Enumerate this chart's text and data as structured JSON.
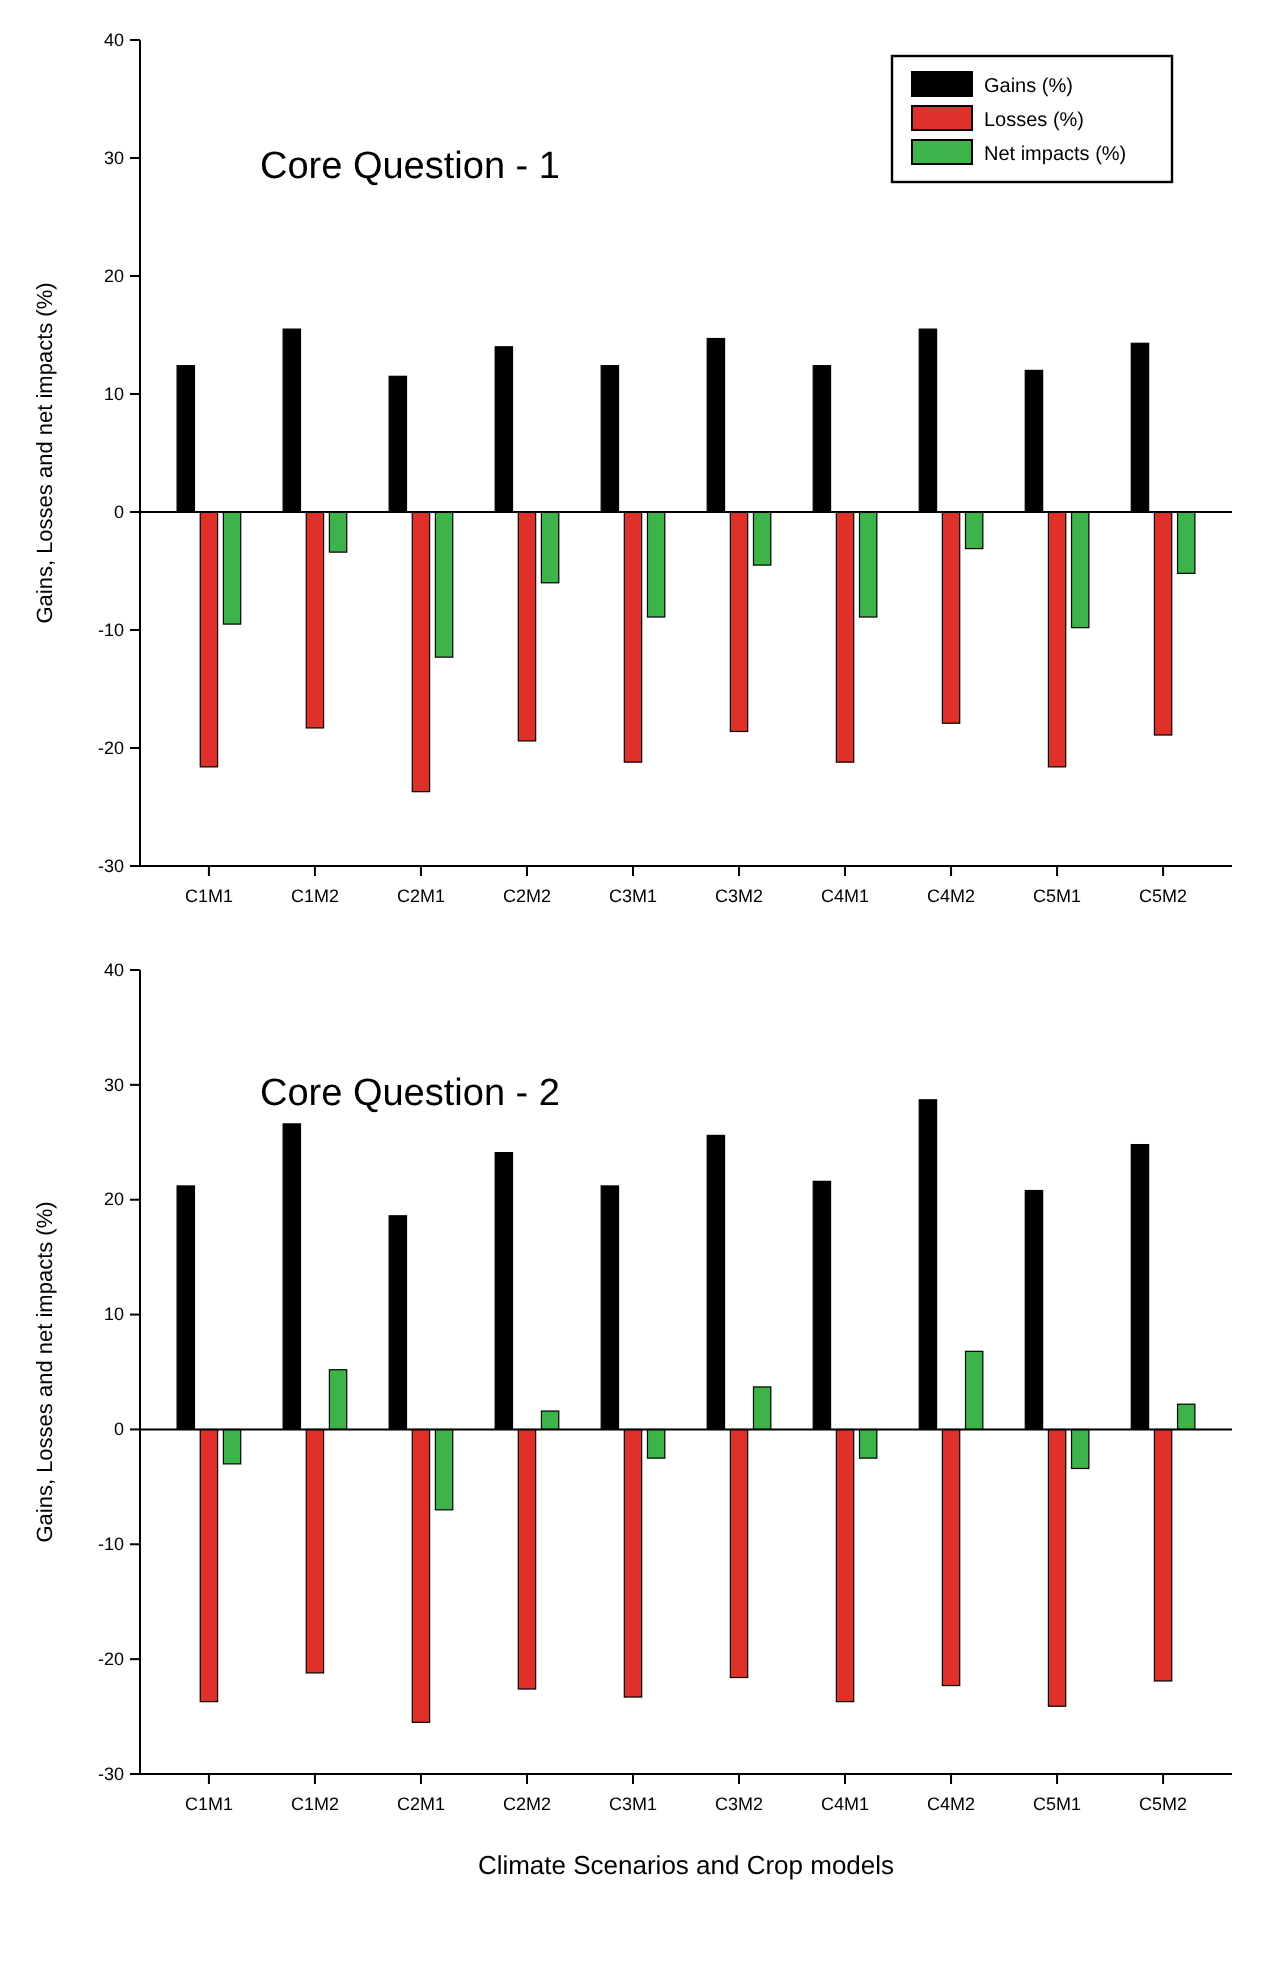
{
  "chart_data": [
    {
      "type": "bar",
      "annotations": [
        "Core Question - 1"
      ],
      "ylabel": "Gains, Losses and net impacts (%)",
      "categories": [
        "C1M1",
        "C1M2",
        "C2M1",
        "C2M2",
        "C3M1",
        "C3M2",
        "C4M1",
        "C4M2",
        "C5M1",
        "C5M2"
      ],
      "series": [
        {
          "name": "Gains (%)",
          "color": "#000000",
          "values": [
            12.4,
            15.5,
            11.5,
            14.0,
            12.4,
            14.7,
            12.4,
            15.5,
            12.0,
            14.3
          ]
        },
        {
          "name": "Losses (%)",
          "color": "#e0302a",
          "values": [
            -21.6,
            -18.3,
            -23.7,
            -19.4,
            -21.2,
            -18.6,
            -21.2,
            -17.9,
            -21.6,
            -18.9
          ]
        },
        {
          "name": "Net impacts (%)",
          "color": "#3cb44a",
          "values": [
            -9.5,
            -3.4,
            -12.3,
            -6.0,
            -8.9,
            -4.5,
            -8.9,
            -3.1,
            -9.8,
            -5.2
          ]
        }
      ],
      "ylim": [
        -30,
        40
      ],
      "yticks": [
        -30,
        -20,
        -10,
        0,
        10,
        20,
        30,
        40
      ],
      "legend": "top right"
    },
    {
      "type": "bar",
      "annotations": [
        "Core Question - 2"
      ],
      "ylabel": "Gains, Losses and net impacts (%)",
      "xlabel": "Climate Scenarios and Crop models",
      "categories": [
        "C1M1",
        "C1M2",
        "C2M1",
        "C2M2",
        "C3M1",
        "C3M2",
        "C4M1",
        "C4M2",
        "C5M1",
        "C5M2"
      ],
      "series": [
        {
          "color": "#000000",
          "values": [
            21.2,
            26.6,
            18.6,
            24.1,
            21.2,
            25.6,
            21.6,
            28.7,
            20.8,
            24.8
          ]
        },
        {
          "color": "#e0302a",
          "values": [
            -23.7,
            -21.2,
            -25.5,
            -22.6,
            -23.3,
            -21.6,
            -23.7,
            -22.3,
            -24.1,
            -21.9
          ]
        },
        {
          "color": "#3cb44a",
          "values": [
            -3.0,
            5.2,
            -7.0,
            1.6,
            -2.5,
            3.7,
            -2.5,
            6.8,
            -3.4,
            2.2
          ]
        }
      ],
      "ylim": [
        -30,
        40
      ],
      "yticks": [
        -30,
        -20,
        -10,
        0,
        10,
        20,
        30,
        40
      ]
    }
  ]
}
